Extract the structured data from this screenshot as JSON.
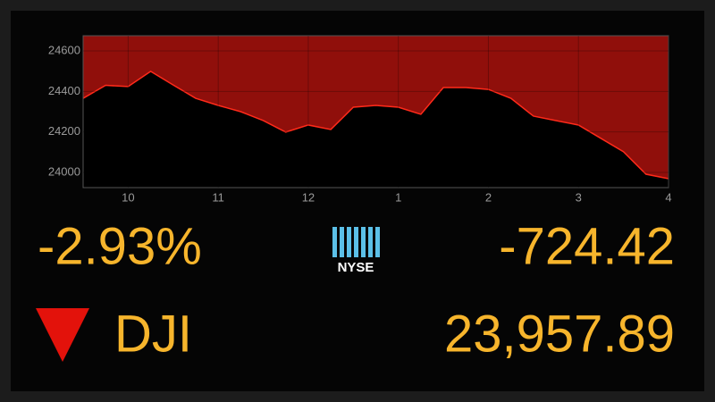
{
  "chart_data": {
    "type": "area",
    "x": [
      9.5,
      9.75,
      10,
      10.25,
      10.5,
      10.75,
      11,
      11.25,
      11.5,
      11.75,
      12,
      12.25,
      12.5,
      12.75,
      13,
      13.25,
      13.5,
      13.75,
      14,
      14.25,
      14.5,
      14.75,
      15,
      15.25,
      15.5,
      15.75,
      16
    ],
    "values": [
      24366,
      24430,
      24424,
      24499,
      24432,
      24366,
      24331,
      24300,
      24256,
      24199,
      24234,
      24212,
      24322,
      24331,
      24322,
      24287,
      24419,
      24419,
      24410,
      24366,
      24278,
      24256,
      24234,
      24168,
      24102,
      23991,
      23969
    ],
    "color": "#c0140f",
    "xlim": [
      9.5,
      16
    ],
    "xticks": [
      10,
      11,
      12,
      {
        "value": 13,
        "label": "1"
      },
      {
        "value": 14,
        "label": "2"
      },
      {
        "value": 15,
        "label": "3"
      },
      {
        "value": 16,
        "label": "4"
      }
    ],
    "ylim": [
      23925,
      24675
    ],
    "yticks": [
      24000,
      24200,
      24400,
      24600
    ],
    "grid": true
  },
  "ticker": {
    "change_percent": "-2.93%",
    "exchange": "NYSE",
    "change_points": "-724.42",
    "symbol": "DJI",
    "price": "23,957.89"
  }
}
